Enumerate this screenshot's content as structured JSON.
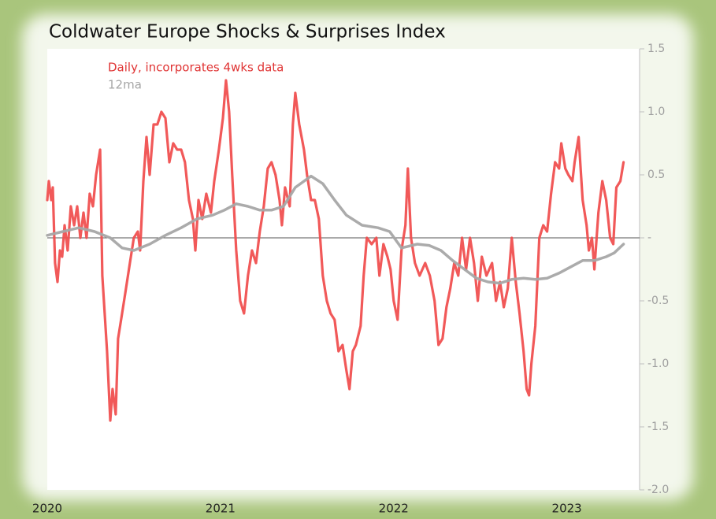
{
  "chart_data": {
    "type": "line",
    "title": "Coldwater Europe Shocks & Surprises Index",
    "xlim": [
      2020,
      2023.42
    ],
    "xticks": [
      2020,
      2021,
      2022,
      2023
    ],
    "ylim": [
      -2,
      1.5
    ],
    "yticks": [
      1.5,
      {
        "value": 1,
        "label": "1.0"
      },
      0.5,
      {
        "value": 0,
        "label": "-"
      },
      -0.5,
      {
        "value": -1,
        "label": "-1.0"
      },
      -1.5,
      {
        "value": -2,
        "label": "-2.0"
      }
    ],
    "zero_line": true,
    "series": [
      {
        "name": "Daily, incorporates 4wks data",
        "color": "#f05050",
        "x": [
          2020,
          2020.009,
          2020.023,
          2020.032,
          2020.045,
          2020.059,
          2020.073,
          2020.086,
          2020.1,
          2020.118,
          2020.136,
          2020.155,
          2020.173,
          2020.191,
          2020.209,
          2020.227,
          2020.245,
          2020.264,
          2020.282,
          2020.305,
          2020.318,
          2020.345,
          2020.364,
          2020.377,
          2020.395,
          2020.409,
          2020.432,
          2020.455,
          2020.477,
          2020.5,
          2020.523,
          2020.536,
          2020.555,
          2020.573,
          2020.591,
          2020.614,
          2020.636,
          2020.659,
          2020.682,
          2020.705,
          2020.727,
          2020.75,
          2020.773,
          2020.795,
          2020.818,
          2020.841,
          2020.855,
          2020.873,
          2020.895,
          2020.918,
          2020.945,
          2020.964,
          2020.991,
          2021.014,
          2021.032,
          2021.05,
          2021.068,
          2021.091,
          2021.114,
          2021.136,
          2021.159,
          2021.182,
          2021.205,
          2021.227,
          2021.25,
          2021.273,
          2021.295,
          2021.318,
          2021.341,
          2021.355,
          2021.373,
          2021.4,
          2021.418,
          2021.432,
          2021.455,
          2021.482,
          2021.5,
          2021.523,
          2021.545,
          2021.568,
          2021.591,
          2021.614,
          2021.636,
          2021.659,
          2021.682,
          2021.705,
          2021.727,
          2021.745,
          2021.764,
          2021.782,
          2021.809,
          2021.827,
          2021.845,
          2021.873,
          2021.9,
          2021.918,
          2021.941,
          2021.964,
          2021.982,
          2022.0,
          2022.023,
          2022.045,
          2022.068,
          2022.082,
          2022.1,
          2022.123,
          2022.15,
          2022.182,
          2022.209,
          2022.236,
          2022.259,
          2022.282,
          2022.305,
          2022.327,
          2022.35,
          2022.373,
          2022.395,
          2022.418,
          2022.441,
          2022.464,
          2022.486,
          2022.509,
          2022.536,
          2022.568,
          2022.591,
          2022.614,
          2022.636,
          2022.659,
          2022.682,
          2022.705,
          2022.727,
          2022.75,
          2022.768,
          2022.782,
          2022.795,
          2022.818,
          2022.841,
          2022.864,
          2022.886,
          2022.909,
          2022.932,
          2022.955,
          2022.968,
          2022.991,
          2023.009,
          2023.032,
          2023.045,
          2023.068,
          2023.091,
          2023.114,
          2023.127,
          2023.145,
          2023.159,
          2023.182,
          2023.205,
          2023.227,
          2023.25,
          2023.268,
          2023.286,
          2023.309,
          2023.327
        ],
        "values": [
          0.3,
          0.45,
          0.3,
          0.4,
          -0.2,
          -0.35,
          -0.1,
          -0.15,
          0.1,
          -0.1,
          0.25,
          0.1,
          0.25,
          0.0,
          0.2,
          0.0,
          0.35,
          0.25,
          0.5,
          0.7,
          -0.3,
          -0.9,
          -1.45,
          -1.2,
          -1.4,
          -0.8,
          -0.6,
          -0.4,
          -0.2,
          0.0,
          0.05,
          -0.1,
          0.45,
          0.8,
          0.5,
          0.9,
          0.9,
          1.0,
          0.95,
          0.6,
          0.75,
          0.7,
          0.7,
          0.6,
          0.3,
          0.15,
          -0.1,
          0.3,
          0.15,
          0.35,
          0.2,
          0.45,
          0.7,
          0.95,
          1.25,
          1.0,
          0.5,
          -0.1,
          -0.5,
          -0.6,
          -0.3,
          -0.1,
          -0.2,
          0.05,
          0.25,
          0.55,
          0.6,
          0.5,
          0.3,
          0.1,
          0.4,
          0.25,
          0.9,
          1.15,
          0.9,
          0.7,
          0.5,
          0.3,
          0.3,
          0.15,
          -0.3,
          -0.5,
          -0.6,
          -0.65,
          -0.9,
          -0.85,
          -1.05,
          -1.2,
          -0.9,
          -0.85,
          -0.7,
          -0.3,
          0.0,
          -0.05,
          0.0,
          -0.3,
          -0.05,
          -0.15,
          -0.25,
          -0.5,
          -0.65,
          -0.1,
          0.1,
          0.55,
          0.0,
          -0.2,
          -0.3,
          -0.2,
          -0.3,
          -0.5,
          -0.85,
          -0.8,
          -0.55,
          -0.4,
          -0.2,
          -0.3,
          0.0,
          -0.25,
          0.0,
          -0.2,
          -0.5,
          -0.15,
          -0.3,
          -0.2,
          -0.5,
          -0.35,
          -0.55,
          -0.4,
          0.0,
          -0.35,
          -0.6,
          -0.9,
          -1.2,
          -1.25,
          -1.0,
          -0.7,
          0.0,
          0.1,
          0.05,
          0.35,
          0.6,
          0.55,
          0.75,
          0.55,
          0.5,
          0.45,
          0.6,
          0.8,
          0.3,
          0.1,
          -0.1,
          0.0,
          -0.25,
          0.2,
          0.45,
          0.3,
          0.0,
          -0.05,
          0.4,
          0.45,
          0.6
        ]
      },
      {
        "name": "12ma",
        "color": "#a6a6a6",
        "x": [
          2020,
          2020.091,
          2020.182,
          2020.273,
          2020.364,
          2020.432,
          2020.5,
          2020.591,
          2020.682,
          2020.773,
          2020.864,
          2020.955,
          2021.023,
          2021.091,
          2021.159,
          2021.227,
          2021.295,
          2021.364,
          2021.432,
          2021.523,
          2021.591,
          2021.659,
          2021.727,
          2021.818,
          2021.909,
          2021.977,
          2022.045,
          2022.136,
          2022.205,
          2022.273,
          2022.341,
          2022.409,
          2022.477,
          2022.545,
          2022.614,
          2022.682,
          2022.75,
          2022.818,
          2022.886,
          2022.955,
          2023.023,
          2023.091,
          2023.159,
          2023.227,
          2023.273,
          2023.327
        ],
        "values": [
          0.02,
          0.05,
          0.08,
          0.05,
          0.0,
          -0.08,
          -0.1,
          -0.05,
          0.02,
          0.08,
          0.15,
          0.18,
          0.22,
          0.27,
          0.25,
          0.22,
          0.22,
          0.25,
          0.4,
          0.49,
          0.43,
          0.3,
          0.18,
          0.1,
          0.08,
          0.05,
          -0.08,
          -0.05,
          -0.06,
          -0.1,
          -0.18,
          -0.25,
          -0.32,
          -0.35,
          -0.36,
          -0.33,
          -0.32,
          -0.33,
          -0.32,
          -0.28,
          -0.23,
          -0.18,
          -0.18,
          -0.15,
          -0.12,
          -0.05
        ]
      }
    ]
  }
}
